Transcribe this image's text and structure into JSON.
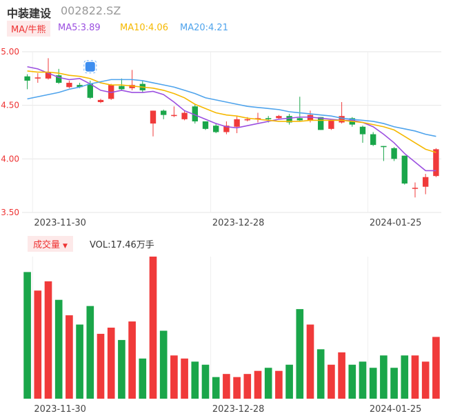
{
  "header": {
    "name": "中装建设",
    "code": "002822.SZ",
    "ma_button": "MA/牛熊",
    "ma5": "MA5:3.89",
    "ma10": "MA10:4.06",
    "ma20": "MA20:4.21"
  },
  "volume_header": {
    "button": "成交量",
    "vol": "VOL:17.46万手"
  },
  "colors": {
    "up": "#f03a3a",
    "down": "#1aa64a",
    "ma5": "#9b4fe0",
    "ma10": "#f5b800",
    "ma20": "#4ea3ec"
  },
  "chart_data": [
    {
      "type": "candlestick",
      "y_ticks": [
        "5.00",
        "4.50",
        "4.00",
        "3.50"
      ],
      "ylim": [
        3.5,
        5.0
      ],
      "x_tick_labels": [
        "2023-11-30",
        "2023-12-28",
        "2024-01-25"
      ],
      "x_tick_index": [
        1,
        18,
        33
      ],
      "grid": true,
      "candles": [
        {
          "o": 4.77,
          "c": 4.73,
          "h": 4.79,
          "l": 4.65
        },
        {
          "o": 4.75,
          "c": 4.76,
          "h": 4.8,
          "l": 4.71
        },
        {
          "o": 4.75,
          "c": 4.81,
          "h": 4.94,
          "l": 4.74
        },
        {
          "o": 4.78,
          "c": 4.71,
          "h": 4.84,
          "l": 4.7
        },
        {
          "o": 4.67,
          "c": 4.71,
          "h": 4.73,
          "l": 4.66
        },
        {
          "o": 4.69,
          "c": 4.67,
          "h": 4.71,
          "l": 4.66
        },
        {
          "o": 4.7,
          "c": 4.57,
          "h": 4.73,
          "l": 4.56
        },
        {
          "o": 4.53,
          "c": 4.55,
          "h": 4.56,
          "l": 4.52
        },
        {
          "o": 4.56,
          "c": 4.69,
          "h": 4.7,
          "l": 4.55
        },
        {
          "o": 4.68,
          "c": 4.65,
          "h": 4.75,
          "l": 4.64
        },
        {
          "o": 4.66,
          "c": 4.69,
          "h": 4.83,
          "l": 4.64
        },
        {
          "o": 4.7,
          "c": 4.64,
          "h": 4.73,
          "l": 4.62
        },
        {
          "o": 4.33,
          "c": 4.45,
          "h": 4.45,
          "l": 4.21
        },
        {
          "o": 4.45,
          "c": 4.41,
          "h": 4.46,
          "l": 4.37
        },
        {
          "o": 4.4,
          "c": 4.41,
          "h": 4.49,
          "l": 4.39
        },
        {
          "o": 4.37,
          "c": 4.43,
          "h": 4.45,
          "l": 4.36
        },
        {
          "o": 4.49,
          "c": 4.35,
          "h": 4.51,
          "l": 4.33
        },
        {
          "o": 4.35,
          "c": 4.28,
          "h": 4.35,
          "l": 4.27
        },
        {
          "o": 4.31,
          "c": 4.25,
          "h": 4.33,
          "l": 4.24
        },
        {
          "o": 4.25,
          "c": 4.31,
          "h": 4.35,
          "l": 4.23
        },
        {
          "o": 4.3,
          "c": 4.37,
          "h": 4.4,
          "l": 4.24
        },
        {
          "o": 4.36,
          "c": 4.37,
          "h": 4.39,
          "l": 4.35
        },
        {
          "o": 4.38,
          "c": 4.38,
          "h": 4.43,
          "l": 4.34
        },
        {
          "o": 4.38,
          "c": 4.37,
          "h": 4.4,
          "l": 4.34
        },
        {
          "o": 4.38,
          "c": 4.4,
          "h": 4.41,
          "l": 4.37
        },
        {
          "o": 4.4,
          "c": 4.34,
          "h": 4.42,
          "l": 4.32
        },
        {
          "o": 4.38,
          "c": 4.36,
          "h": 4.58,
          "l": 4.35
        },
        {
          "o": 4.36,
          "c": 4.41,
          "h": 4.45,
          "l": 4.34
        },
        {
          "o": 4.39,
          "c": 4.27,
          "h": 4.39,
          "l": 4.27
        },
        {
          "o": 4.28,
          "c": 4.36,
          "h": 4.36,
          "l": 4.27
        },
        {
          "o": 4.34,
          "c": 4.4,
          "h": 4.53,
          "l": 4.33
        },
        {
          "o": 4.38,
          "c": 4.32,
          "h": 4.39,
          "l": 4.3
        },
        {
          "o": 4.3,
          "c": 4.23,
          "h": 4.31,
          "l": 4.15
        },
        {
          "o": 4.23,
          "c": 4.13,
          "h": 4.25,
          "l": 4.12
        },
        {
          "o": 4.12,
          "c": 4.11,
          "h": 4.12,
          "l": 3.98
        },
        {
          "o": 4.1,
          "c": 4.0,
          "h": 4.11,
          "l": 3.98
        },
        {
          "o": 4.03,
          "c": 3.77,
          "h": 4.03,
          "l": 3.76
        },
        {
          "o": 3.73,
          "c": 3.73,
          "h": 3.78,
          "l": 3.64
        },
        {
          "o": 3.74,
          "c": 3.83,
          "h": 3.86,
          "l": 3.67
        },
        {
          "o": 3.84,
          "c": 4.09,
          "h": 4.1,
          "l": 3.83
        }
      ],
      "ma5": [
        4.86,
        4.84,
        4.8,
        4.76,
        4.74,
        4.75,
        4.7,
        4.64,
        4.62,
        4.64,
        4.62,
        4.62,
        4.63,
        4.6,
        4.53,
        4.45,
        4.41,
        4.37,
        4.33,
        4.3,
        4.29,
        4.31,
        4.33,
        4.35,
        4.37,
        4.38,
        4.39,
        4.39,
        4.38,
        4.37,
        4.36,
        4.36,
        4.34,
        4.3,
        4.23,
        4.15,
        4.05,
        3.97,
        3.89,
        3.89
      ],
      "ma10": [
        4.82,
        4.81,
        4.81,
        4.8,
        4.78,
        4.77,
        4.75,
        4.71,
        4.69,
        4.69,
        4.68,
        4.67,
        4.66,
        4.64,
        4.61,
        4.57,
        4.51,
        4.47,
        4.43,
        4.41,
        4.4,
        4.38,
        4.37,
        4.36,
        4.35,
        4.35,
        4.35,
        4.36,
        4.36,
        4.36,
        4.36,
        4.35,
        4.34,
        4.32,
        4.3,
        4.27,
        4.21,
        4.15,
        4.09,
        4.06
      ],
      "ma20": [
        4.56,
        4.58,
        4.6,
        4.62,
        4.65,
        4.67,
        4.7,
        4.72,
        4.74,
        4.74,
        4.74,
        4.73,
        4.71,
        4.69,
        4.67,
        4.64,
        4.61,
        4.57,
        4.55,
        4.53,
        4.51,
        4.49,
        4.48,
        4.47,
        4.46,
        4.44,
        4.43,
        4.42,
        4.41,
        4.4,
        4.38,
        4.37,
        4.36,
        4.35,
        4.33,
        4.3,
        4.28,
        4.26,
        4.23,
        4.21
      ]
    },
    {
      "type": "bar",
      "series": [
        {
          "name": "成交量",
          "values": [
            41,
            35,
            38,
            32,
            27,
            24,
            30,
            21,
            23,
            19,
            25,
            13,
            46,
            22,
            14,
            13,
            12,
            11,
            7,
            8,
            7,
            8,
            9,
            10,
            9,
            11,
            29,
            24,
            16,
            11,
            15,
            11,
            12,
            10,
            14,
            10,
            14,
            14,
            12,
            20
          ]
        }
      ],
      "x_tick_labels": [
        "2023-11-30",
        "2023-12-28",
        "2024-01-25"
      ]
    }
  ]
}
